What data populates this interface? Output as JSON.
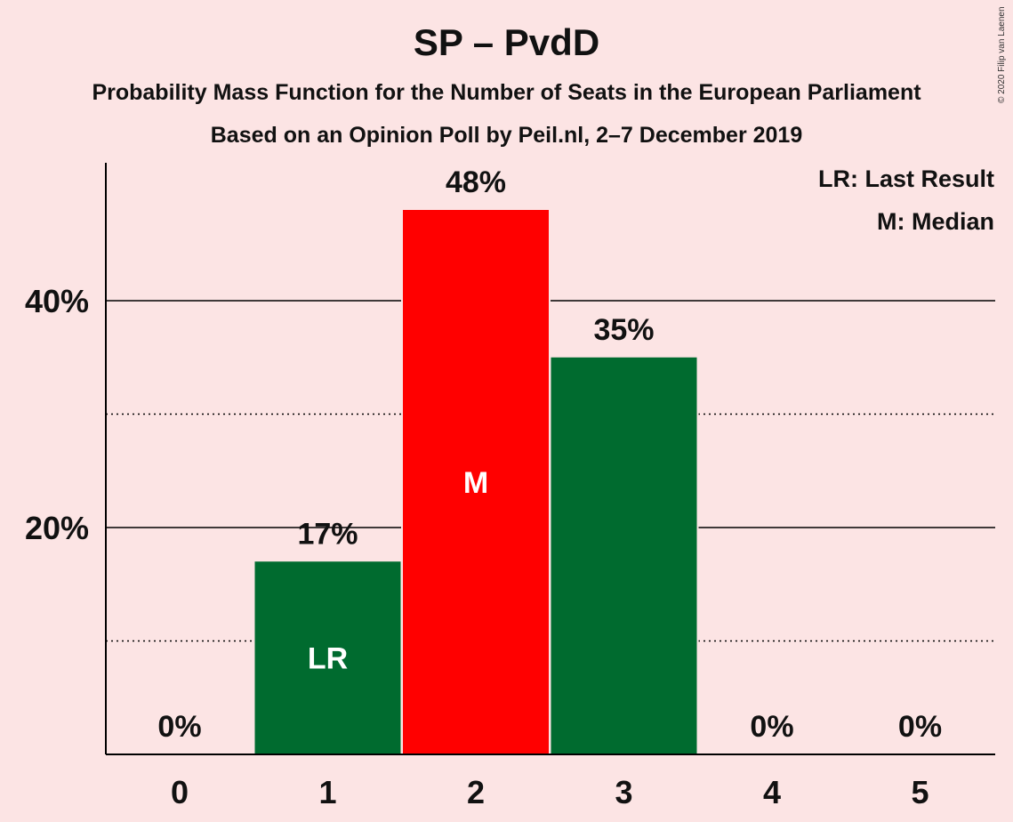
{
  "chart_data": {
    "type": "bar",
    "title": "SP – PvdD",
    "subtitle": "Probability Mass Function for the Number of Seats in the European Parliament",
    "subtitle2": "Based on an Opinion Poll by Peil.nl, 2–7 December 2019",
    "categories": [
      "0",
      "1",
      "2",
      "3",
      "4",
      "5"
    ],
    "values": [
      0,
      17,
      48,
      35,
      0,
      0
    ],
    "value_labels": [
      "0%",
      "17%",
      "48%",
      "35%",
      "0%",
      "0%"
    ],
    "bar_markers": [
      "",
      "LR",
      "M",
      "",
      "",
      ""
    ],
    "bar_colors": [
      "#006b2f",
      "#006b2f",
      "#ff0000",
      "#006b2f",
      "#006b2f",
      "#006b2f"
    ],
    "ylim": [
      0,
      52
    ],
    "y_ticks": [
      {
        "value": 20,
        "label": "20%"
      },
      {
        "value": 40,
        "label": "40%"
      }
    ],
    "minor_gridlines": [
      10,
      30
    ],
    "legend": [
      "LR: Last Result",
      "M: Median"
    ],
    "legend_position": "top-right",
    "grid": true,
    "xlabel": "",
    "ylabel": ""
  },
  "copyright": "© 2020 Filip van Laenen"
}
